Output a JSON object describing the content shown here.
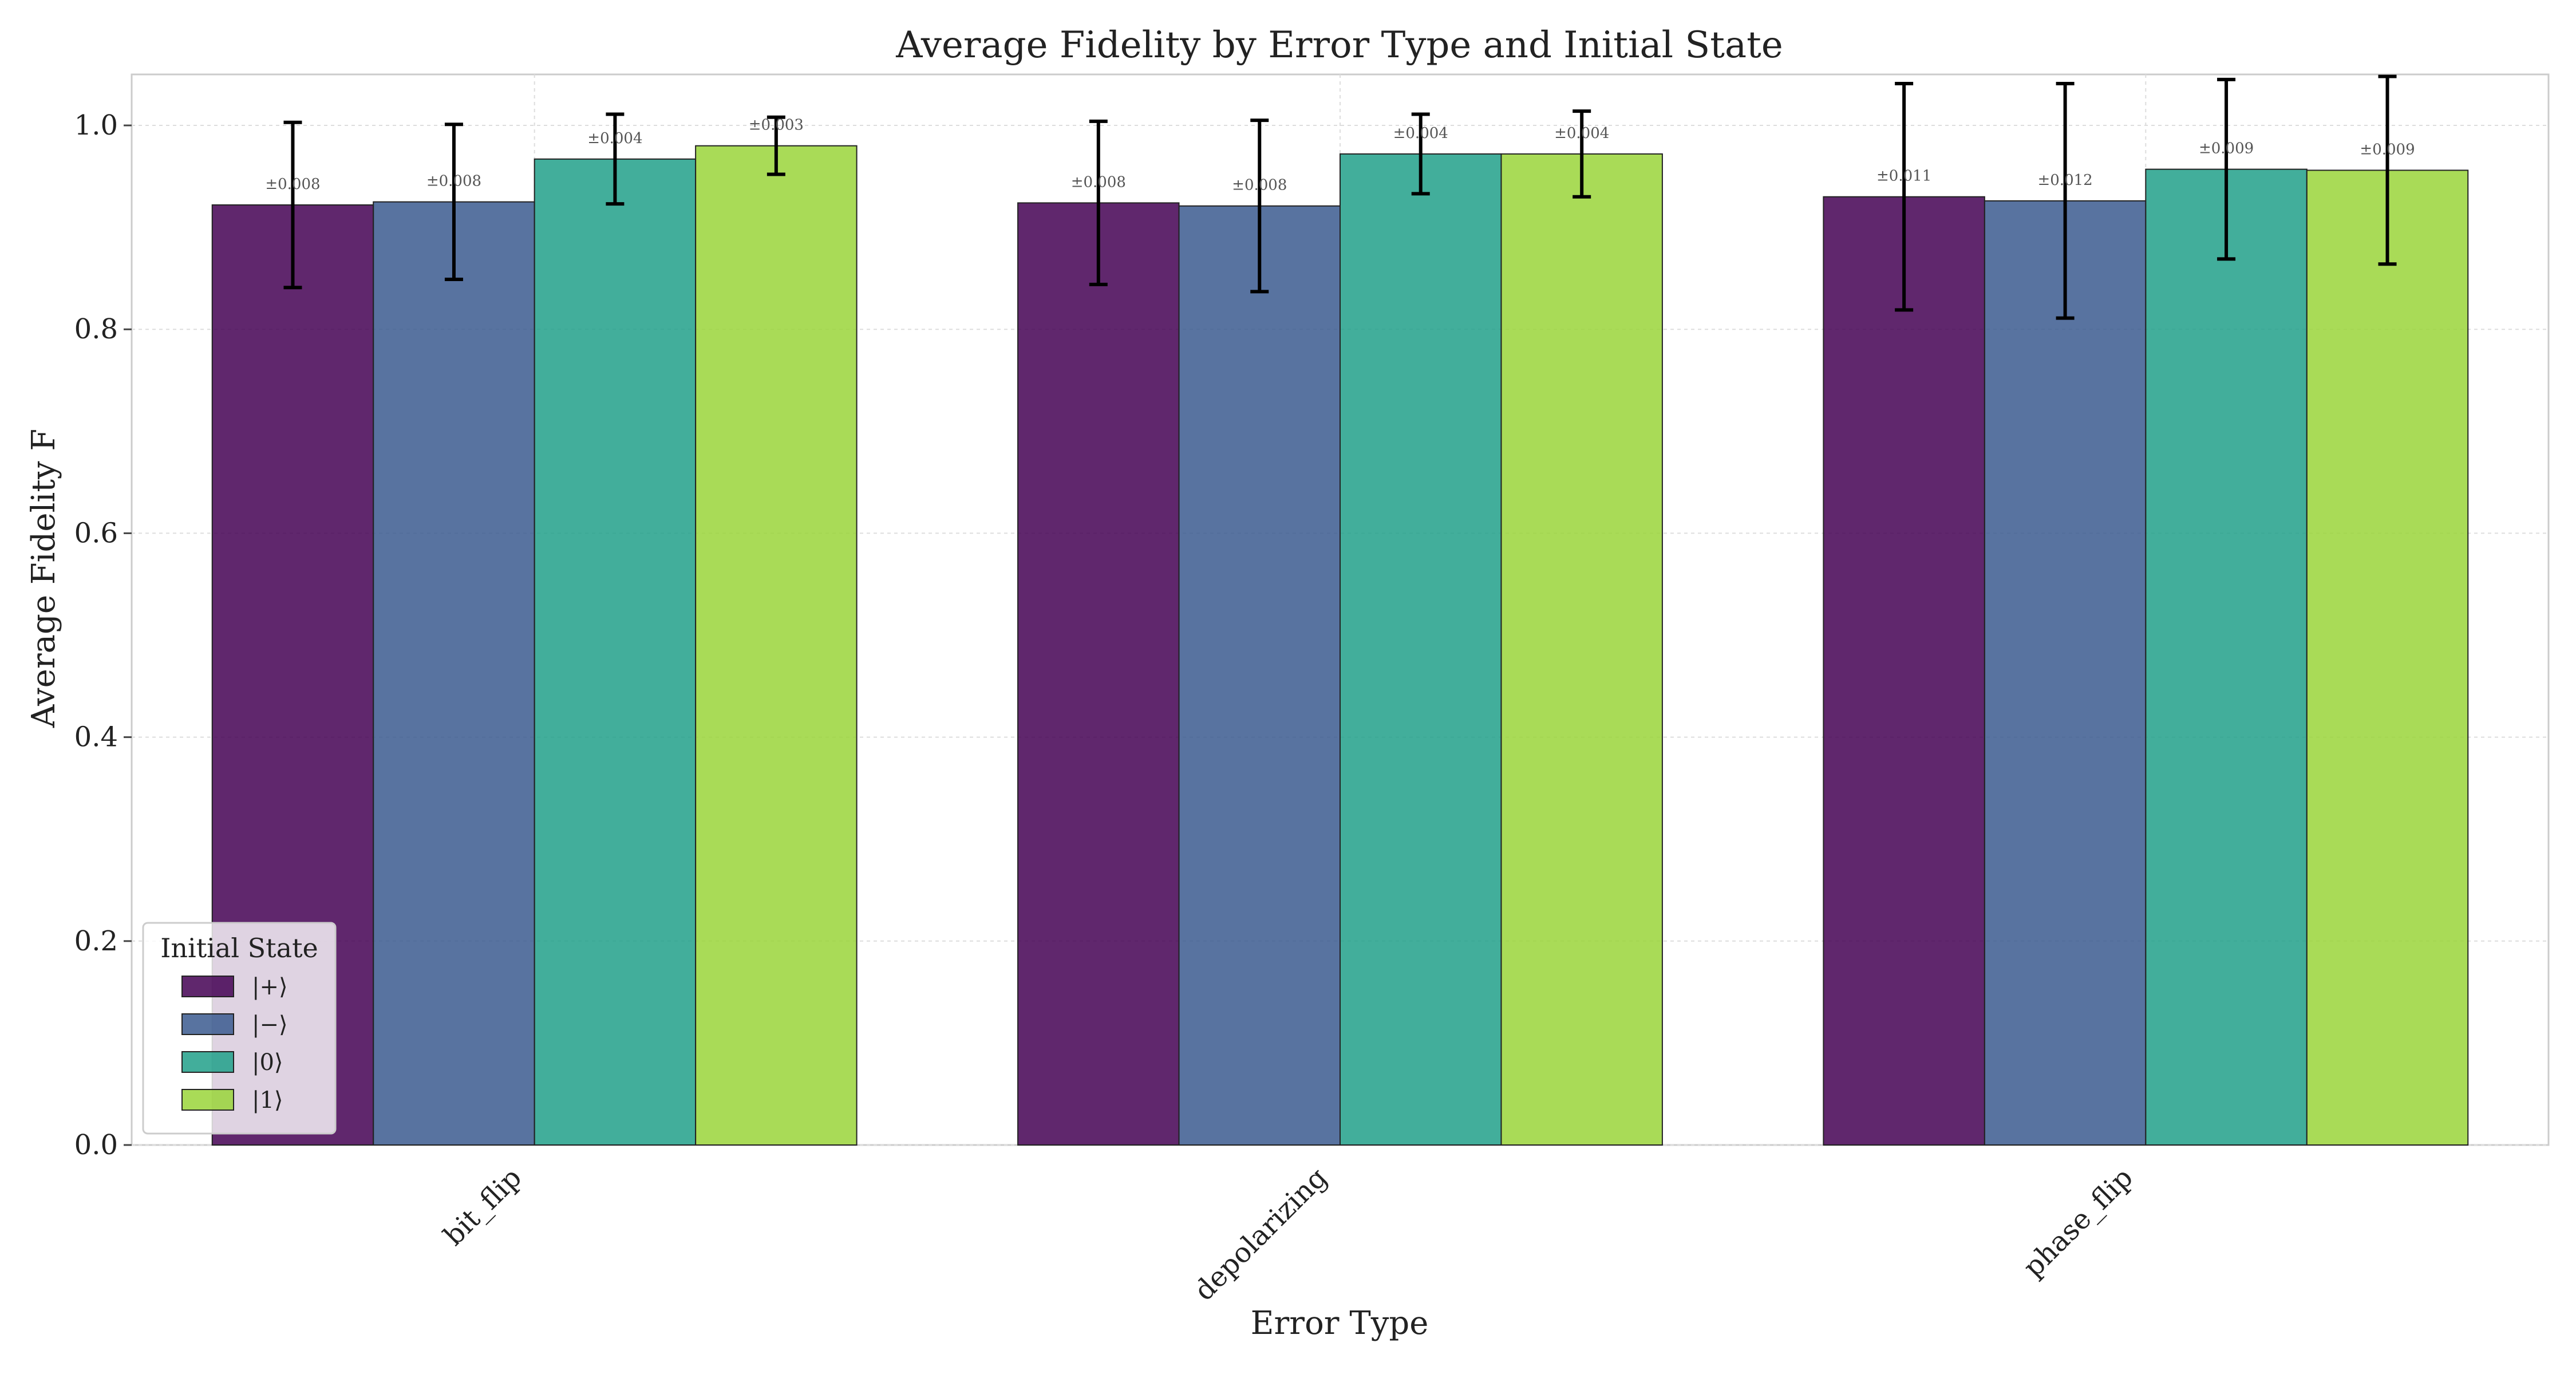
{
  "chart_data": {
    "type": "bar",
    "title": "Average Fidelity by Error Type and Initial State",
    "xlabel": "Error Type",
    "ylabel": "Average Fidelity F",
    "ylim": [
      0,
      1.05
    ],
    "yticks": [
      0.0,
      0.2,
      0.4,
      0.6,
      0.8,
      1.0
    ],
    "ytick_labels": [
      "0.0",
      "0.2",
      "0.4",
      "0.6",
      "0.8",
      "1.0"
    ],
    "grid": true,
    "legend_title": "Initial State",
    "legend_position": "lower-left",
    "categories": [
      "bit_flip",
      "depolarizing",
      "phase_flip"
    ],
    "series": [
      {
        "name": "|+⟩",
        "color": "#440154",
        "values": [
          0.922,
          0.924,
          0.93
        ],
        "errors": [
          0.081,
          0.08,
          0.111
        ],
        "error_labels": [
          "±0.008",
          "±0.008",
          "±0.011"
        ]
      },
      {
        "name": "|−⟩",
        "color": "#3b5a8f",
        "values": [
          0.925,
          0.921,
          0.926
        ],
        "errors": [
          0.076,
          0.084,
          0.115
        ],
        "error_labels": [
          "±0.008",
          "±0.008",
          "±0.012"
        ]
      },
      {
        "name": "|0⟩",
        "color": "#21a08a",
        "values": [
          0.967,
          0.972,
          0.957
        ],
        "errors": [
          0.044,
          0.039,
          0.088
        ],
        "error_labels": [
          "±0.004",
          "±0.004",
          "±0.009"
        ]
      },
      {
        "name": "|1⟩",
        "color": "#9ad53a",
        "values": [
          0.98,
          0.972,
          0.956
        ],
        "errors": [
          0.028,
          0.042,
          0.092
        ],
        "error_labels": [
          "±0.003",
          "±0.004",
          "±0.009"
        ]
      }
    ]
  }
}
